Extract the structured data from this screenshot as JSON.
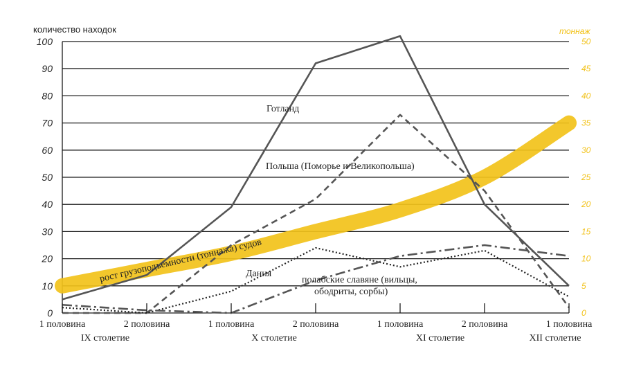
{
  "chart_data": {
    "type": "line",
    "ylabel": "количество находок",
    "ylabel_right": "тоннаж",
    "ylim": [
      0,
      100
    ],
    "ylim_right": [
      0,
      50
    ],
    "yticks": [
      0,
      10,
      20,
      30,
      40,
      50,
      60,
      70,
      80,
      90,
      100
    ],
    "yticks_right": [
      0,
      5,
      10,
      15,
      20,
      25,
      30,
      35,
      40,
      45,
      50
    ],
    "grid": true,
    "categories": [
      "1 половина",
      "2 половина",
      "1 половина",
      "2 половина",
      "1 половина",
      "2 половина",
      "1 половина"
    ],
    "groups": [
      "IX столетие",
      "X столетие",
      "XI столетие",
      "XII столетие"
    ],
    "series": [
      {
        "name": "Готланд",
        "style": "solid",
        "color": "#555555",
        "values": [
          5,
          14,
          39,
          92,
          102,
          40,
          10
        ]
      },
      {
        "name": "Польша (Поморье и Великопольша)",
        "style": "dashed",
        "color": "#555555",
        "values": [
          0,
          0,
          25,
          42,
          73,
          45,
          2
        ]
      },
      {
        "name": "Дания",
        "style": "dotted",
        "color": "#222222",
        "values": [
          2,
          0,
          8,
          24,
          17,
          23,
          6
        ]
      },
      {
        "name": "полабские славяне (вильцы, ободриты, сорбы)",
        "style": "dashdot",
        "color": "#555555",
        "values": [
          3,
          1,
          0,
          12,
          21,
          25,
          21
        ]
      },
      {
        "name": "рост грузоподъемности (тоннажа) судов",
        "style": "band",
        "color": "#f2c21a",
        "axis": "right",
        "values": [
          5,
          8,
          11,
          15,
          19,
          25,
          35
        ]
      }
    ]
  }
}
